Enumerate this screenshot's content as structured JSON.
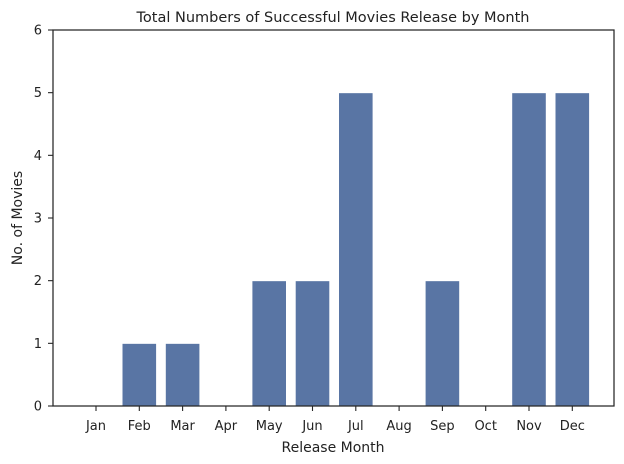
{
  "chart_data": {
    "type": "bar",
    "title": "Total Numbers of Successful Movies Release by Month",
    "xlabel": "Release Month",
    "ylabel": "No. of Movies",
    "categories": [
      "Jan",
      "Feb",
      "Mar",
      "Apr",
      "May",
      "Jun",
      "Jul",
      "Aug",
      "Sep",
      "Oct",
      "Nov",
      "Dec"
    ],
    "values": [
      0,
      1,
      1,
      0,
      2,
      2,
      5,
      0,
      2,
      0,
      5,
      5
    ],
    "ylim": [
      0,
      6
    ],
    "yticks": [
      "0",
      "1",
      "2",
      "3",
      "4",
      "5",
      "6"
    ],
    "grid": false,
    "bar_color": "#5975a4"
  }
}
